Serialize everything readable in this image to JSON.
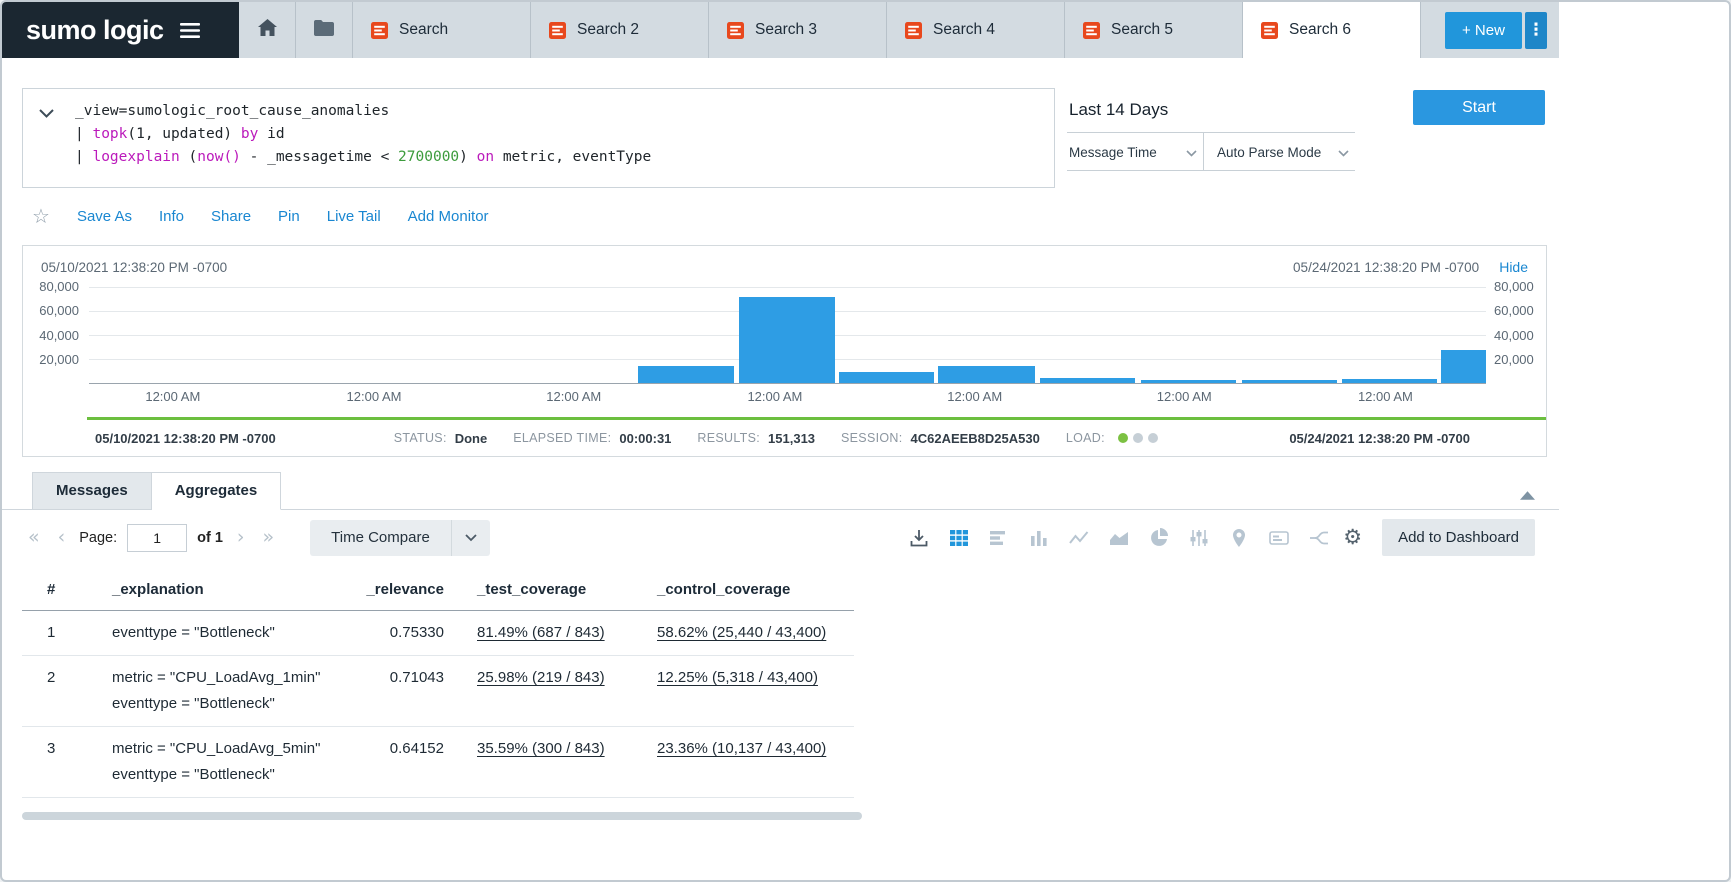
{
  "topbar": {
    "logo_text": "sumo logic",
    "search_tabs": [
      {
        "label": "Search",
        "active": false
      },
      {
        "label": "Search 2",
        "active": false
      },
      {
        "label": "Search 3",
        "active": false
      },
      {
        "label": "Search 4",
        "active": false
      },
      {
        "label": "Search 5",
        "active": false
      },
      {
        "label": "Search 6",
        "active": true
      }
    ],
    "new_button_label": "+ New"
  },
  "query": {
    "lines": [
      [
        {
          "text": "_view=sumologic_root_cause_anomalies",
          "style": "plain"
        }
      ],
      [
        {
          "text": "| ",
          "style": "plain"
        },
        {
          "text": "topk",
          "style": "keyword"
        },
        {
          "text": "(1, updated) ",
          "style": "plain"
        },
        {
          "text": "by",
          "style": "keyword"
        },
        {
          "text": " id",
          "style": "plain"
        }
      ],
      [
        {
          "text": "| ",
          "style": "plain"
        },
        {
          "text": "logexplain",
          "style": "keyword"
        },
        {
          "text": "  (",
          "style": "plain"
        },
        {
          "text": "now()",
          "style": "keyword"
        },
        {
          "text": " - _messagetime < ",
          "style": "plain"
        },
        {
          "text": "2700000",
          "style": "number"
        },
        {
          "text": ") ",
          "style": "plain"
        },
        {
          "text": "on",
          "style": "keyword"
        },
        {
          "text": " metric, eventType",
          "style": "plain"
        }
      ]
    ],
    "time_range": "Last 14 Days",
    "message_time": "Message Time",
    "parse_mode": "Auto Parse Mode",
    "start_button": "Start"
  },
  "actions": [
    "Save As",
    "Info",
    "Share",
    "Pin",
    "Live Tail",
    "Add Monitor"
  ],
  "chart_panel": {
    "start_time": "05/10/2021 12:38:20 PM -0700",
    "end_time": "05/24/2021 12:38:20 PM -0700",
    "hide_label": "Hide"
  },
  "chart_data": {
    "type": "bar",
    "title": "Search results histogram",
    "xlabel": "",
    "ylabel": "",
    "ylim": [
      0,
      80000
    ],
    "yticks": [
      "80,000",
      "60,000",
      "40,000",
      "20,000"
    ],
    "xtick_label": "12:00 AM",
    "xtick_positions_pct": [
      6.0,
      20.4,
      34.7,
      49.1,
      63.4,
      78.4,
      92.8
    ],
    "bar_color": "#2e9de4",
    "bars": [
      {
        "left_pct": 39.3,
        "width_pct": 6.9,
        "value": 14500
      },
      {
        "left_pct": 46.5,
        "width_pct": 6.9,
        "value": 72000
      },
      {
        "left_pct": 53.7,
        "width_pct": 6.8,
        "value": 9000
      },
      {
        "left_pct": 60.8,
        "width_pct": 6.9,
        "value": 14500
      },
      {
        "left_pct": 68.1,
        "width_pct": 6.8,
        "value": 4200
      },
      {
        "left_pct": 75.3,
        "width_pct": 6.8,
        "value": 2700
      },
      {
        "left_pct": 82.5,
        "width_pct": 6.8,
        "value": 2700
      },
      {
        "left_pct": 89.7,
        "width_pct": 6.8,
        "value": 3700
      },
      {
        "left_pct": 96.8,
        "width_pct": 3.2,
        "value": 27500
      }
    ]
  },
  "status_bar": {
    "start_time": "05/10/2021 12:38:20 PM -0700",
    "end_time": "05/24/2021 12:38:20 PM -0700",
    "items": [
      {
        "name": "status",
        "label": "STATUS:",
        "value": "Done"
      },
      {
        "name": "elapsed-time",
        "label": "ELAPSED TIME:",
        "value": "00:00:31"
      },
      {
        "name": "results",
        "label": "RESULTS:",
        "value": "151,313"
      },
      {
        "name": "session",
        "label": "SESSION:",
        "value": "4C62AEEB8D25A530"
      },
      {
        "name": "load",
        "label": "LOAD:",
        "value": ""
      }
    ]
  },
  "results": {
    "tabs": [
      {
        "label": "Messages",
        "active": false
      },
      {
        "label": "Aggregates",
        "active": true
      }
    ],
    "pagination": {
      "page_label": "Page:",
      "page_value": "1",
      "of_label": "of 1"
    },
    "time_compare_label": "Time Compare",
    "view_icons": [
      {
        "name": "download",
        "state": "dark"
      },
      {
        "name": "table",
        "state": "active"
      },
      {
        "name": "bar-chart",
        "state": "disabled"
      },
      {
        "name": "column-chart",
        "state": "disabled"
      },
      {
        "name": "line-chart",
        "state": "disabled"
      },
      {
        "name": "area-chart",
        "state": "disabled"
      },
      {
        "name": "pie-chart",
        "state": "disabled"
      },
      {
        "name": "box-plot",
        "state": "disabled"
      },
      {
        "name": "map",
        "state": "disabled"
      },
      {
        "name": "word-cloud",
        "state": "disabled"
      },
      {
        "name": "sankey",
        "state": "disabled"
      }
    ],
    "add_to_dashboard_label": "Add to Dashboard",
    "table": {
      "columns": [
        "#",
        "_explanation",
        "_relevance",
        "_test_coverage",
        "_control_coverage"
      ],
      "rows": [
        {
          "num": "1",
          "explanation": [
            "eventtype = \"Bottleneck\""
          ],
          "relevance": "0.75330",
          "test_coverage": "81.49% (687 / 843)",
          "control_coverage": "58.62% (25,440 / 43,400)"
        },
        {
          "num": "2",
          "explanation": [
            "metric = \"CPU_LoadAvg_1min\"",
            "eventtype = \"Bottleneck\""
          ],
          "relevance": "0.71043",
          "test_coverage": "25.98% (219 / 843)",
          "control_coverage": "12.25% (5,318 / 43,400)"
        },
        {
          "num": "3",
          "explanation": [
            "metric = \"CPU_LoadAvg_5min\"",
            "eventtype = \"Bottleneck\""
          ],
          "relevance": "0.64152",
          "test_coverage": "35.59% (300 / 843)",
          "control_coverage": "23.36% (10,137 / 43,400)"
        }
      ]
    }
  },
  "colors": {
    "accent_blue": "#2196db",
    "link_blue": "#1a87d1",
    "sumo_orange": "#e8481d",
    "bar_blue": "#2e9de4",
    "load_green": "#7cc142",
    "keyword_magenta": "#bb1abb",
    "number_green": "#3c9b3c",
    "topbar_dark": "#1b2731",
    "tabstrip_gray": "#d3dbe1"
  }
}
